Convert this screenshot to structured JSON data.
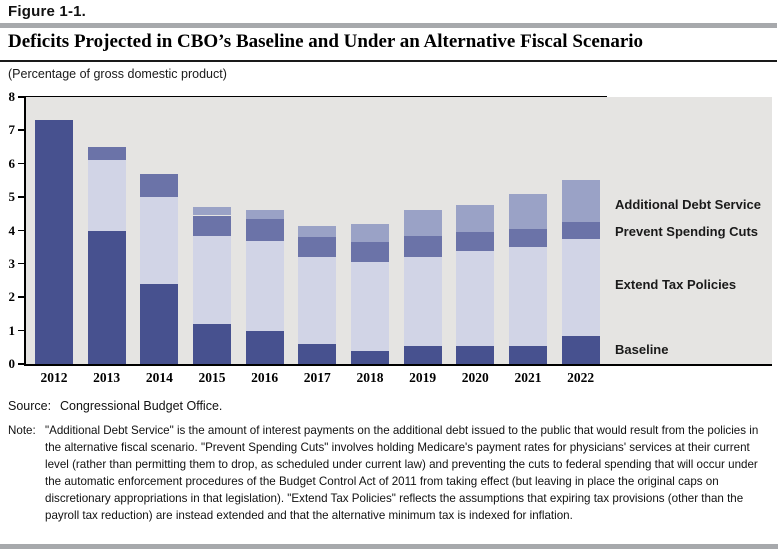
{
  "figure": {
    "label": "Figure 1-1.",
    "title": "Deficits Projected in CBO’s Baseline and Under an Alternative Fiscal Scenario",
    "subtitle": "(Percentage of gross domestic product)"
  },
  "chart_data": {
    "type": "bar",
    "stacked": true,
    "title": "Deficits Projected in CBO’s Baseline and Under an Alternative Fiscal Scenario",
    "xlabel": "",
    "ylabel": "Percentage of gross domestic product",
    "ylim": [
      0,
      8
    ],
    "yticks": [
      "0",
      "1",
      "2",
      "3",
      "4",
      "5",
      "6",
      "7",
      "8"
    ],
    "grid": false,
    "legend_position": "right",
    "plot_background": "#e5e4e2",
    "categories": [
      "2012",
      "2013",
      "2014",
      "2015",
      "2016",
      "2017",
      "2018",
      "2019",
      "2020",
      "2021",
      "2022"
    ],
    "series": [
      {
        "name": "Baseline",
        "color": "#47518f",
        "values": [
          7.3,
          4.0,
          2.4,
          1.2,
          1.0,
          0.6,
          0.4,
          0.55,
          0.55,
          0.55,
          0.85
        ]
      },
      {
        "name": "Extend Tax Policies",
        "color": "#d1d4e6",
        "values": [
          0,
          2.1,
          2.6,
          2.65,
          2.7,
          2.6,
          2.65,
          2.65,
          2.85,
          2.95,
          2.9
        ]
      },
      {
        "name": "Prevent Spending Cuts",
        "color": "#6b73a8",
        "values": [
          0,
          0.4,
          0.7,
          0.6,
          0.65,
          0.6,
          0.6,
          0.65,
          0.55,
          0.55,
          0.5
        ]
      },
      {
        "name": "Additional Debt Service",
        "color": "#9aa2c6",
        "values": [
          0,
          0,
          0,
          0.25,
          0.25,
          0.35,
          0.55,
          0.75,
          0.8,
          1.05,
          1.25
        ]
      }
    ]
  },
  "footer": {
    "source_label": "Source:",
    "source_text": "Congressional Budget Office.",
    "note_label": "Note:",
    "note_text": "\"Additional Debt Service\" is the amount of interest payments on the additional debt issued to the public that would result from the policies in the alternative fiscal scenario. \"Prevent Spending Cuts\" involves holding Medicare's payment rates for physicians' services at their current level (rather than permitting them to drop, as scheduled under current law) and preventing the cuts to federal spending that will occur under the automatic enforcement procedures of the Budget Control Act of 2011 from taking effect (but leaving in place the original caps on discretionary appropriations in that legislation). \"Extend Tax Policies\" reflects the assumptions that expiring tax provisions (other than the payroll tax reduction) are instead extended and that the alternative minimum tax is indexed for inflation."
  }
}
